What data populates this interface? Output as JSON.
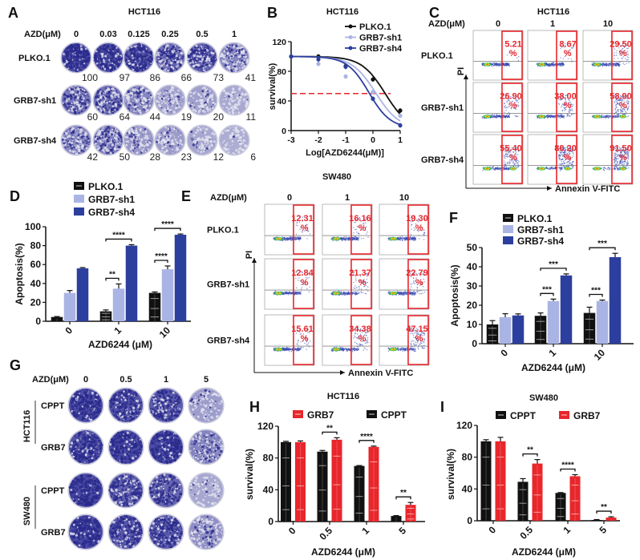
{
  "panel_labels": {
    "A": "A",
    "B": "B",
    "C": "C",
    "D": "D",
    "E": "E",
    "F": "F",
    "G": "G",
    "H": "H",
    "I": "I"
  },
  "colors": {
    "plko": "#111111",
    "sh1": "#aab4e4",
    "sh4": "#2c3f9e",
    "grb7": "#e8262b",
    "cppt": "#111111",
    "stain": "#34349a",
    "gate": "#e8262b",
    "threshold": "#e8262b"
  },
  "panel_a": {
    "title": "HCT116",
    "dose_label": "AZD(μM)",
    "doses": [
      "0",
      "0.03",
      "0.125",
      "0.25",
      "0.5",
      "1"
    ],
    "rows": [
      {
        "label": "PLKO.1",
        "values": [
          "100",
          "97",
          "86",
          "66",
          "73",
          "41"
        ]
      },
      {
        "label": "GRB7-sh1",
        "values": [
          "60",
          "64",
          "44",
          "19",
          "20",
          "11"
        ]
      },
      {
        "label": "GRB7-sh4",
        "values": [
          "42",
          "50",
          "28",
          "23",
          "12",
          "6"
        ]
      }
    ]
  },
  "panel_c": {
    "title": "HCT116",
    "dose_label": "AZD(μM)",
    "doses": [
      "0",
      "1",
      "10"
    ],
    "y_axis": "PI",
    "x_axis": "Annexin V-FITC",
    "pct_sign": "%",
    "rows": [
      {
        "label": "PLKO.1",
        "values": [
          "5.21",
          "8.67",
          "29.50"
        ]
      },
      {
        "label": "GRB7-sh1",
        "values": [
          "26.90",
          "38.00",
          "58.90"
        ]
      },
      {
        "label": "GRB7-sh4",
        "values": [
          "55.40",
          "80.20",
          "91.50"
        ]
      }
    ]
  },
  "panel_e": {
    "title": "SW480",
    "dose_label": "AZD(μM)",
    "doses": [
      "0",
      "1",
      "10"
    ],
    "y_axis": "PI",
    "x_axis": "Annexin V-FITC",
    "pct_sign": "%",
    "rows": [
      {
        "label": "PLKO.1",
        "values": [
          "12.31",
          "16.16",
          "19.30"
        ]
      },
      {
        "label": "GRB7-sh1",
        "values": [
          "12.84",
          "21.37",
          "22.79"
        ]
      },
      {
        "label": "GRB7-sh4",
        "values": [
          "15.61",
          "34.38",
          "47.15"
        ]
      }
    ]
  },
  "panel_g": {
    "dose_label": "AZD(μM)",
    "doses": [
      "0",
      "0.5",
      "1",
      "5"
    ],
    "groups": [
      {
        "label": "HCT116",
        "rows": [
          "CPPT",
          "GRB7"
        ]
      },
      {
        "label": "SW480",
        "rows": [
          "CPPT",
          "GRB7"
        ]
      }
    ]
  },
  "chart_data": [
    {
      "panel": "B",
      "type": "line",
      "title": "HCT116",
      "xlabel": "Log[AZD6244(μM)]",
      "ylabel": "survival(%)",
      "xlim": [
        -3,
        1
      ],
      "ylim": [
        0,
        120
      ],
      "xticks": [
        "-3",
        "-2",
        "-1",
        "0",
        "1"
      ],
      "yticks": [
        "0",
        "40",
        "80",
        "120"
      ],
      "x": [
        -3,
        -2,
        -1,
        0,
        1
      ],
      "reference_line": {
        "y": 50,
        "style": "dashed",
        "color": "#e8262b"
      },
      "legend_position": "top-right",
      "series": [
        {
          "name": "PLKO.1",
          "color": "#111111",
          "values": [
            100,
            100,
            87,
            69,
            27
          ]
        },
        {
          "name": "GRB7-sh1",
          "color": "#aab4e4",
          "values": [
            100,
            90,
            73,
            52,
            20
          ]
        },
        {
          "name": "GRB7-sh4",
          "color": "#2c3f9e",
          "values": [
            100,
            96,
            86,
            43,
            7
          ]
        }
      ]
    },
    {
      "panel": "D",
      "type": "bar",
      "xlabel": "AZD6244 (μM)",
      "ylabel": "Apoptosis(%)",
      "ylim": [
        0,
        100
      ],
      "yticks": [
        "0",
        "20",
        "40",
        "60",
        "80",
        "100"
      ],
      "categories": [
        "0",
        "1",
        "10"
      ],
      "legend_position": "top",
      "series": [
        {
          "name": "PLKO.1",
          "color": "#111111",
          "values": [
            4.5,
            10.5,
            30
          ],
          "errors": [
            0.5,
            1.5,
            1
          ]
        },
        {
          "name": "GRB7-sh1",
          "color": "#aab4e4",
          "values": [
            30,
            34.5,
            55
          ],
          "errors": [
            2.5,
            5,
            3.5
          ]
        },
        {
          "name": "GRB7-sh4",
          "color": "#2c3f9e",
          "values": [
            56,
            80,
            91.5
          ],
          "errors": [
            0.8,
            1,
            0.8
          ]
        }
      ],
      "significance": [
        {
          "category": "1",
          "from": 0,
          "to": 1,
          "label": "**"
        },
        {
          "category": "1",
          "from": 0,
          "to": 2,
          "label": "****"
        },
        {
          "category": "10",
          "from": 0,
          "to": 1,
          "label": "****"
        },
        {
          "category": "10",
          "from": 0,
          "to": 2,
          "label": "****"
        }
      ]
    },
    {
      "panel": "F",
      "type": "bar",
      "xlabel": "AZD6244 (μM)",
      "ylabel": "Apoptosis(%)",
      "ylim": [
        0,
        50
      ],
      "yticks": [
        "0",
        "10",
        "20",
        "30",
        "40",
        "50"
      ],
      "categories": [
        "0",
        "1",
        "10"
      ],
      "legend_position": "top",
      "series": [
        {
          "name": "PLKO.1",
          "color": "#111111",
          "values": [
            10,
            14.5,
            16
          ],
          "errors": [
            2,
            1.5,
            3
          ]
        },
        {
          "name": "GRB7-sh1",
          "color": "#aab4e4",
          "values": [
            13.8,
            22.2,
            22.2
          ],
          "errors": [
            1.8,
            1,
            0.5
          ]
        },
        {
          "name": "GRB7-sh4",
          "color": "#2c3f9e",
          "values": [
            14.7,
            35.5,
            45
          ],
          "errors": [
            0.8,
            0.8,
            2
          ]
        }
      ],
      "significance": [
        {
          "category": "1",
          "from": 0,
          "to": 1,
          "label": "***"
        },
        {
          "category": "1",
          "from": 0,
          "to": 2,
          "label": "***"
        },
        {
          "category": "10",
          "from": 0,
          "to": 1,
          "label": "***"
        },
        {
          "category": "10",
          "from": 0,
          "to": 2,
          "label": "***"
        }
      ]
    },
    {
      "panel": "H",
      "type": "bar",
      "title": "HCT116",
      "xlabel": "AZD6244 (μM)",
      "ylabel": "survival(%)",
      "ylim": [
        0,
        120
      ],
      "yticks": [
        "0",
        "40",
        "80",
        "120"
      ],
      "categories": [
        "0",
        "0.5",
        "1",
        "5"
      ],
      "legend_position": "top",
      "legend_order": [
        "GRB7",
        "CPPT"
      ],
      "series": [
        {
          "name": "CPPT",
          "color": "#111111",
          "values": [
            100,
            88,
            70,
            7
          ],
          "errors": [
            1,
            1.5,
            0.5,
            0.5
          ]
        },
        {
          "name": "GRB7",
          "color": "#e8262b",
          "values": [
            100,
            103,
            94,
            21
          ],
          "errors": [
            1.5,
            2.5,
            1,
            3
          ]
        }
      ],
      "significance": [
        {
          "category": "0.5",
          "from": 0,
          "to": 1,
          "label": "**"
        },
        {
          "category": "1",
          "from": 0,
          "to": 1,
          "label": "****"
        },
        {
          "category": "5",
          "from": 0,
          "to": 1,
          "label": "**"
        }
      ]
    },
    {
      "panel": "I",
      "type": "bar",
      "title": "SW480",
      "xlabel": "AZD6244 (μM)",
      "ylabel": "survival(%)",
      "ylim": [
        0,
        120
      ],
      "yticks": [
        "0",
        "40",
        "80",
        "120"
      ],
      "categories": [
        "0",
        "0.5",
        "1",
        "5"
      ],
      "legend_position": "top",
      "legend_order": [
        "CPPT",
        "GRB7"
      ],
      "series": [
        {
          "name": "CPPT",
          "color": "#111111",
          "values": [
            100,
            49,
            35,
            1
          ],
          "errors": [
            2,
            4,
            0.5,
            0.5
          ]
        },
        {
          "name": "GRB7",
          "color": "#e8262b",
          "values": [
            100,
            72,
            56,
            4
          ],
          "errors": [
            5,
            5,
            2,
            1
          ]
        }
      ],
      "significance": [
        {
          "category": "0.5",
          "from": 0,
          "to": 1,
          "label": "**"
        },
        {
          "category": "1",
          "from": 0,
          "to": 1,
          "label": "****"
        },
        {
          "category": "5",
          "from": 0,
          "to": 1,
          "label": "**"
        }
      ]
    }
  ]
}
